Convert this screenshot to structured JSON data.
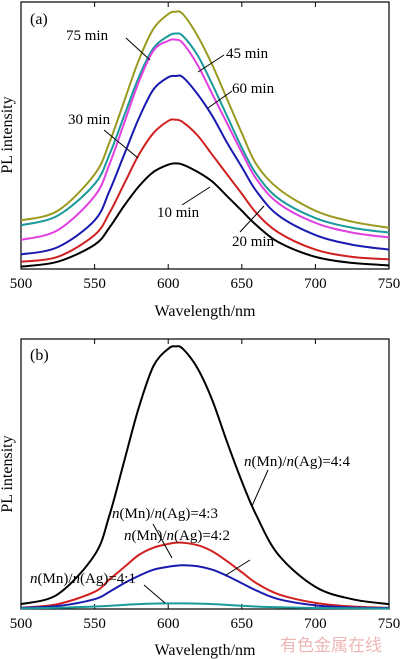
{
  "watermark": "有色金属在线",
  "chart_data": [
    {
      "type": "line",
      "panel_label": "(a)",
      "xlabel": "Wavelength/nm",
      "ylabel": "PL intensity",
      "xlim": [
        500,
        750
      ],
      "ylim": [
        0,
        1.1
      ],
      "xticks": [
        500,
        550,
        600,
        650,
        700,
        750
      ],
      "grid": false,
      "x": [
        500,
        525,
        550,
        560,
        570,
        580,
        590,
        600,
        605,
        610,
        620,
        630,
        640,
        650,
        660,
        675,
        700,
        725,
        750
      ],
      "series": [
        {
          "name": "75 min",
          "color": "#9a9a20",
          "label_text": "75 min",
          "values": [
            0.2,
            0.24,
            0.39,
            0.52,
            0.69,
            0.86,
            0.99,
            1.05,
            1.06,
            1.05,
            0.96,
            0.84,
            0.7,
            0.56,
            0.43,
            0.33,
            0.24,
            0.195,
            0.17
          ]
        },
        {
          "name": "45 min",
          "color": "#1a9a9a",
          "label_text": "45 min",
          "values": [
            0.18,
            0.22,
            0.35,
            0.47,
            0.63,
            0.79,
            0.91,
            0.96,
            0.97,
            0.96,
            0.88,
            0.76,
            0.63,
            0.5,
            0.39,
            0.29,
            0.21,
            0.17,
            0.15
          ]
        },
        {
          "name": "30 min",
          "color": "#e040e0",
          "label_text": "30 min",
          "values": [
            0.12,
            0.16,
            0.3,
            0.43,
            0.6,
            0.77,
            0.9,
            0.94,
            0.945,
            0.93,
            0.84,
            0.72,
            0.6,
            0.48,
            0.37,
            0.27,
            0.19,
            0.15,
            0.13
          ]
        },
        {
          "name": "60 min",
          "color": "#1a1ab0",
          "label_text": "60 min",
          "values": [
            0.06,
            0.09,
            0.2,
            0.32,
            0.47,
            0.62,
            0.74,
            0.79,
            0.795,
            0.79,
            0.72,
            0.63,
            0.52,
            0.42,
            0.32,
            0.22,
            0.14,
            0.1,
            0.08
          ]
        },
        {
          "name": "20 min",
          "color": "#d02020",
          "label_text": "20 min",
          "values": [
            0.03,
            0.05,
            0.14,
            0.23,
            0.35,
            0.47,
            0.56,
            0.61,
            0.615,
            0.605,
            0.55,
            0.47,
            0.39,
            0.31,
            0.23,
            0.15,
            0.08,
            0.05,
            0.04
          ]
        },
        {
          "name": "10 min",
          "color": "#000000",
          "label_text": "10 min",
          "values": [
            0.01,
            0.03,
            0.1,
            0.17,
            0.26,
            0.34,
            0.4,
            0.43,
            0.435,
            0.43,
            0.4,
            0.36,
            0.3,
            0.24,
            0.18,
            0.11,
            0.05,
            0.025,
            0.015
          ]
        }
      ]
    },
    {
      "type": "line",
      "panel_label": "(b)",
      "xlabel": "Wavelength/nm",
      "ylabel": "PL intensity",
      "xlim": [
        500,
        750
      ],
      "ylim": [
        0,
        1.1
      ],
      "xticks": [
        500,
        550,
        600,
        650,
        700,
        750
      ],
      "grid": false,
      "x": [
        500,
        525,
        550,
        560,
        570,
        580,
        590,
        600,
        605,
        610,
        620,
        630,
        640,
        650,
        660,
        675,
        700,
        725,
        750
      ],
      "series": [
        {
          "name": "n(Mn)/n(Ag)=4:4",
          "color": "#000000",
          "label_text": "n(Mn)/n(Ag)=4:4",
          "values": [
            0.02,
            0.06,
            0.22,
            0.38,
            0.6,
            0.82,
            0.99,
            1.06,
            1.07,
            1.06,
            0.98,
            0.85,
            0.68,
            0.52,
            0.38,
            0.22,
            0.09,
            0.04,
            0.02
          ]
        },
        {
          "name": "n(Mn)/n(Ag)=4:3",
          "color": "#d02020",
          "label_text": "n(Mn)/n(Ag)=4:3",
          "values": [
            0.005,
            0.02,
            0.07,
            0.12,
            0.17,
            0.22,
            0.25,
            0.265,
            0.27,
            0.27,
            0.26,
            0.235,
            0.195,
            0.15,
            0.105,
            0.06,
            0.025,
            0.01,
            0.005
          ]
        },
        {
          "name": "n(Mn)/n(Ag)=4:2",
          "color": "#1a1ab0",
          "label_text": "n(Mn)/n(Ag)=4:2",
          "values": [
            0.005,
            0.012,
            0.04,
            0.07,
            0.105,
            0.135,
            0.16,
            0.172,
            0.176,
            0.178,
            0.174,
            0.16,
            0.135,
            0.105,
            0.075,
            0.04,
            0.015,
            0.006,
            0.004
          ]
        },
        {
          "name": "n(Mn)/n(Ag)=4:1",
          "color": "#1a9a9a",
          "label_text": "n(Mn)/n(Ag)=4:1",
          "values": [
            0.003,
            0.005,
            0.01,
            0.013,
            0.017,
            0.02,
            0.022,
            0.023,
            0.023,
            0.023,
            0.022,
            0.02,
            0.017,
            0.013,
            0.01,
            0.007,
            0.004,
            0.003,
            0.002
          ]
        }
      ]
    }
  ]
}
